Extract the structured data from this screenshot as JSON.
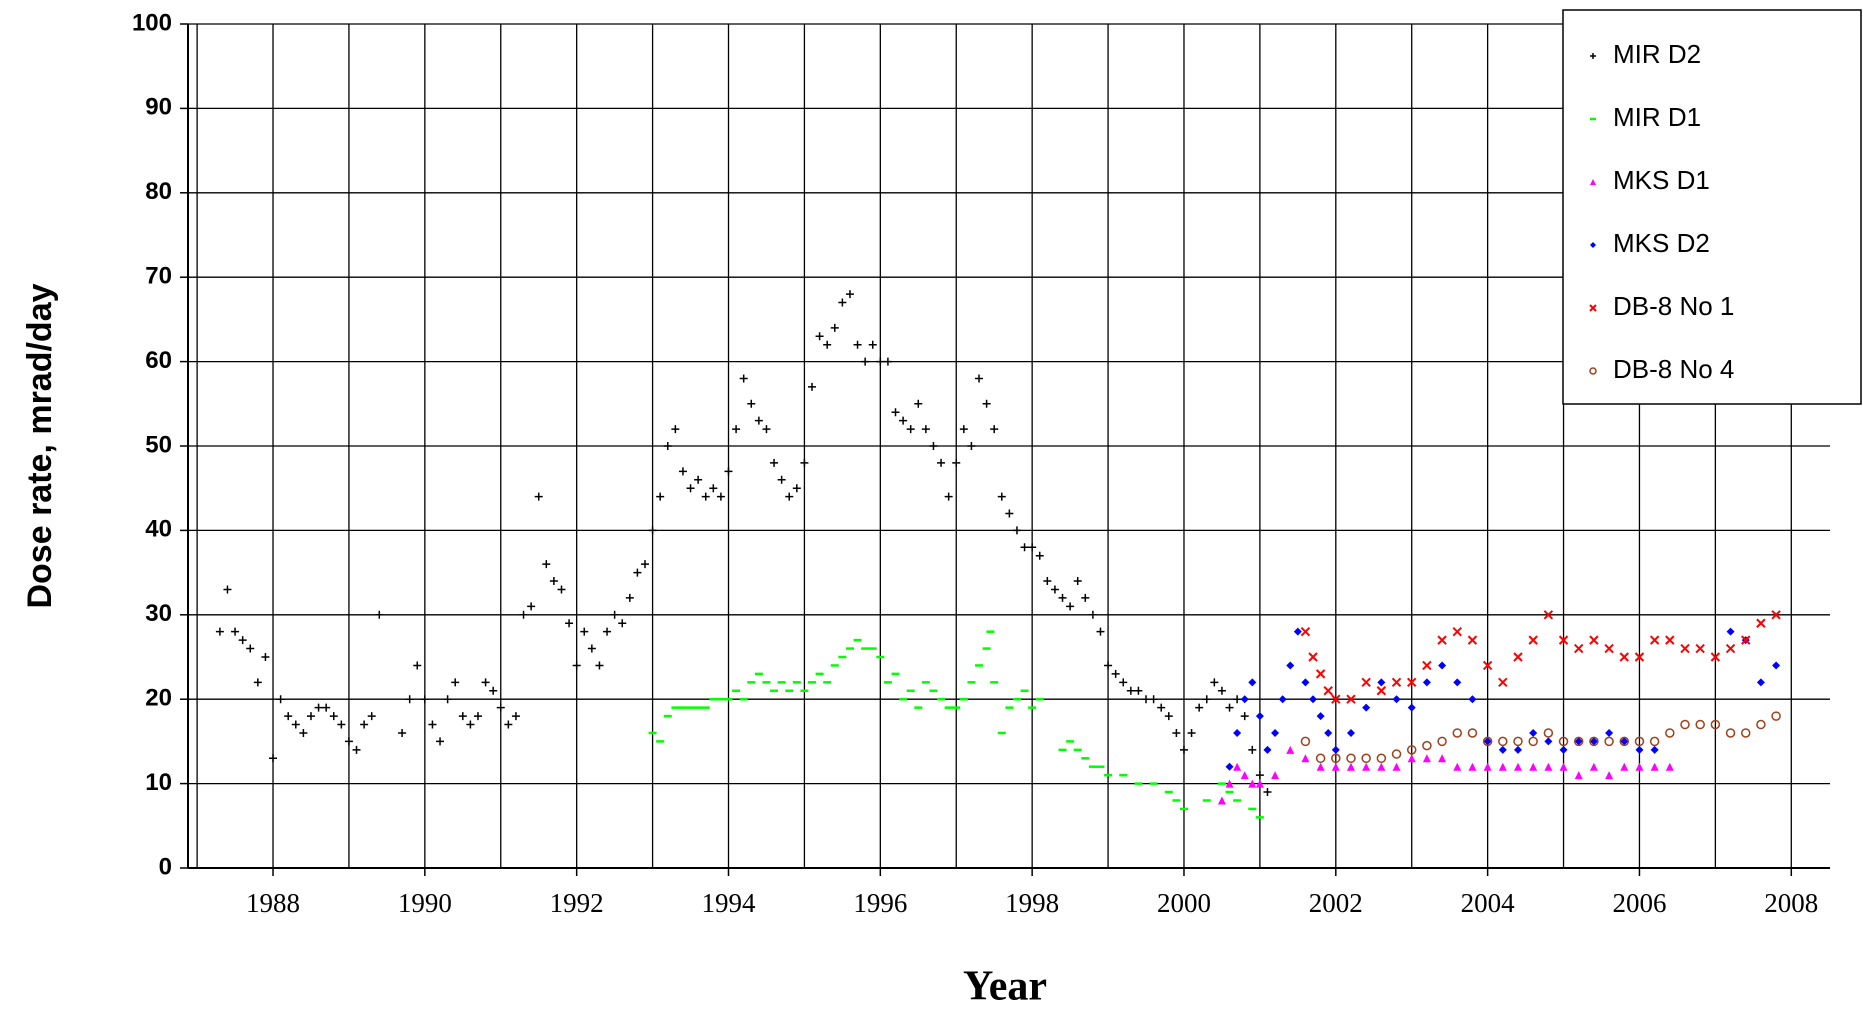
{
  "chart_data": {
    "type": "scatter",
    "x_label": "Year",
    "y_label": "Dose rate, mrad/day",
    "xlim": [
      1986.88,
      2008.51
    ],
    "ylim": [
      0,
      100
    ],
    "xticks": [
      1988,
      1990,
      1992,
      1994,
      1996,
      1998,
      2000,
      2002,
      2004,
      2006,
      2008
    ],
    "xgrid": [
      1987,
      1988,
      1989,
      1990,
      1991,
      1992,
      1993,
      1994,
      1995,
      1996,
      1997,
      1998,
      1999,
      2000,
      2001,
      2002,
      2003,
      2004,
      2005,
      2006,
      2007,
      2008
    ],
    "yticks": [
      0,
      10,
      20,
      30,
      40,
      50,
      60,
      70,
      80,
      90,
      100
    ],
    "grid": true,
    "legend": "upper right",
    "series": [
      {
        "name": "MIR D2",
        "color": "#000000",
        "marker": "plus",
        "x": [
          1987.3,
          1987.4,
          1987.5,
          1987.6,
          1987.7,
          1987.8,
          1987.9,
          1988.0,
          1988.1,
          1988.2,
          1988.3,
          1988.4,
          1988.5,
          1988.6,
          1988.7,
          1988.8,
          1988.9,
          1989.0,
          1989.1,
          1989.2,
          1989.3,
          1989.4,
          1989.7,
          1989.8,
          1989.9,
          1990.0,
          1990.1,
          1990.2,
          1990.3,
          1990.4,
          1990.5,
          1990.6,
          1990.7,
          1990.8,
          1990.9,
          1991.0,
          1991.1,
          1991.2,
          1991.3,
          1991.4,
          1991.5,
          1991.6,
          1991.7,
          1991.8,
          1991.9,
          1992.0,
          1992.1,
          1992.2,
          1992.3,
          1992.4,
          1992.5,
          1992.6,
          1992.7,
          1992.8,
          1992.9,
          1993.0,
          1993.1,
          1993.2,
          1993.3,
          1993.4,
          1993.5,
          1993.6,
          1993.7,
          1993.8,
          1993.9,
          1994.0,
          1994.1,
          1994.2,
          1994.3,
          1994.4,
          1994.5,
          1994.6,
          1994.7,
          1994.8,
          1994.9,
          1995.0,
          1995.1,
          1995.2,
          1995.3,
          1995.4,
          1995.5,
          1995.6,
          1995.7,
          1995.8,
          1995.9,
          1996.0,
          1996.1,
          1996.2,
          1996.3,
          1996.4,
          1996.5,
          1996.6,
          1996.7,
          1996.8,
          1996.9,
          1997.0,
          1997.1,
          1997.2,
          1997.3,
          1997.4,
          1997.5,
          1997.6,
          1997.7,
          1997.8,
          1997.9,
          1998.0,
          1998.1,
          1998.2,
          1998.3,
          1998.4,
          1998.5,
          1998.6,
          1998.7,
          1998.8,
          1998.9,
          1999.0,
          1999.1,
          1999.2,
          1999.3,
          1999.4,
          1999.5,
          1999.6,
          1999.7,
          1999.8,
          1999.9,
          2000.0,
          2000.1,
          2000.2,
          2000.3,
          2000.4,
          2000.5,
          2000.6,
          2000.7,
          2000.8,
          2000.9,
          2001.0,
          2001.1
        ],
        "values": [
          28,
          33,
          28,
          27,
          26,
          22,
          25,
          13,
          20,
          18,
          17,
          16,
          18,
          19,
          19,
          18,
          17,
          15,
          14,
          17,
          18,
          30,
          16,
          20,
          24,
          20,
          17,
          15,
          20,
          22,
          18,
          17,
          18,
          22,
          21,
          19,
          17,
          18,
          30,
          31,
          44,
          36,
          34,
          33,
          29,
          24,
          28,
          26,
          24,
          28,
          30,
          29,
          32,
          35,
          36,
          40,
          44,
          50,
          52,
          47,
          45,
          46,
          44,
          45,
          44,
          47,
          52,
          58,
          55,
          53,
          52,
          48,
          46,
          44,
          45,
          48,
          57,
          63,
          62,
          64,
          67,
          68,
          62,
          60,
          62,
          60,
          60,
          54,
          53,
          52,
          55,
          52,
          50,
          48,
          44,
          48,
          52,
          50,
          58,
          55,
          52,
          44,
          42,
          40,
          38,
          38,
          37,
          34,
          33,
          32,
          31,
          34,
          32,
          30,
          28,
          24,
          23,
          22,
          21,
          21,
          20,
          20,
          19,
          18,
          16,
          14,
          16,
          19,
          20,
          22,
          21,
          19,
          20,
          18,
          14,
          11,
          9
        ]
      },
      {
        "name": "MIR D1",
        "color": "#00ff00",
        "marker": "dash",
        "x": [
          1993.0,
          1993.1,
          1993.2,
          1993.3,
          1993.4,
          1993.5,
          1993.6,
          1993.7,
          1993.8,
          1993.9,
          1994.0,
          1994.1,
          1994.2,
          1994.3,
          1994.4,
          1994.5,
          1994.6,
          1994.7,
          1994.8,
          1994.9,
          1995.0,
          1995.1,
          1995.2,
          1995.3,
          1995.4,
          1995.5,
          1995.6,
          1995.7,
          1995.8,
          1995.9,
          1996.0,
          1996.1,
          1996.2,
          1996.3,
          1996.4,
          1996.5,
          1996.6,
          1996.7,
          1996.8,
          1996.9,
          1997.0,
          1997.1,
          1997.2,
          1997.3,
          1997.4,
          1997.45,
          1997.5,
          1997.6,
          1997.7,
          1997.8,
          1997.9,
          1998.0,
          1998.1,
          1998.4,
          1998.5,
          1998.6,
          1998.7,
          1998.8,
          1998.9,
          1999.0,
          1999.2,
          1999.4,
          1999.6,
          1999.8,
          1999.9,
          2000.0,
          2000.3,
          2000.5,
          2000.6,
          2000.7,
          2000.9,
          2001.0
        ],
        "values": [
          16,
          15,
          18,
          19,
          19,
          19,
          19,
          19,
          20,
          20,
          20,
          21,
          20,
          22,
          23,
          22,
          21,
          22,
          21,
          22,
          21,
          22,
          23,
          22,
          24,
          25,
          26,
          27,
          26,
          26,
          25,
          22,
          23,
          20,
          21,
          19,
          22,
          21,
          20,
          19,
          19,
          20,
          22,
          24,
          26,
          28,
          22,
          16,
          19,
          20,
          21,
          19,
          20,
          14,
          15,
          14,
          13,
          12,
          12,
          11,
          11,
          10,
          10,
          9,
          8,
          7,
          8,
          10,
          9,
          8,
          7,
          6
        ]
      },
      {
        "name": "MKS D1",
        "color": "#ff00ff",
        "marker": "triangle",
        "x": [
          2000.5,
          2000.6,
          2000.7,
          2000.8,
          2000.9,
          2001.0,
          2001.2,
          2001.4,
          2001.6,
          2001.8,
          2002.0,
          2002.2,
          2002.4,
          2002.6,
          2002.8,
          2003.0,
          2003.2,
          2003.4,
          2003.6,
          2003.8,
          2004.0,
          2004.2,
          2004.4,
          2004.6,
          2004.8,
          2005.0,
          2005.2,
          2005.4,
          2005.6,
          2005.8,
          2006.0,
          2006.2,
          2006.4
        ],
        "values": [
          8,
          10,
          12,
          11,
          10,
          10,
          11,
          14,
          13,
          12,
          12,
          12,
          12,
          12,
          12,
          13,
          13,
          13,
          12,
          12,
          12,
          12,
          12,
          12,
          12,
          12,
          11,
          12,
          11,
          12,
          12,
          12,
          12
        ]
      },
      {
        "name": "MKS D2",
        "color": "#0000ff",
        "marker": "diamond",
        "x": [
          2000.6,
          2000.7,
          2000.8,
          2000.9,
          2001.0,
          2001.1,
          2001.2,
          2001.3,
          2001.4,
          2001.5,
          2001.6,
          2001.7,
          2001.8,
          2001.9,
          2002.0,
          2002.2,
          2002.4,
          2002.6,
          2002.8,
          2003.0,
          2003.2,
          2003.4,
          2003.6,
          2003.8,
          2004.0,
          2004.2,
          2004.4,
          2004.6,
          2004.8,
          2005.0,
          2005.2,
          2005.4,
          2005.6,
          2005.8,
          2006.0,
          2006.2,
          2007.2,
          2007.4,
          2007.6,
          2007.8
        ],
        "values": [
          12,
          16,
          20,
          22,
          18,
          14,
          16,
          20,
          24,
          28,
          22,
          20,
          18,
          16,
          14,
          16,
          19,
          22,
          20,
          19,
          22,
          24,
          22,
          20,
          15,
          14,
          14,
          16,
          15,
          14,
          15,
          15,
          16,
          15,
          14,
          14,
          28,
          27,
          22,
          24
        ]
      },
      {
        "name": "DB-8 No 1",
        "color": "#ff0000",
        "marker": "x",
        "x": [
          2001.6,
          2001.7,
          2001.8,
          2001.9,
          2002.0,
          2002.2,
          2002.4,
          2002.6,
          2002.8,
          2003.0,
          2003.2,
          2003.4,
          2003.6,
          2003.8,
          2004.0,
          2004.2,
          2004.4,
          2004.6,
          2004.8,
          2005.0,
          2005.2,
          2005.4,
          2005.6,
          2005.8,
          2006.0,
          2006.2,
          2006.4,
          2006.6,
          2006.8,
          2007.0,
          2007.2,
          2007.4,
          2007.6,
          2007.8
        ],
        "values": [
          28,
          25,
          23,
          21,
          20,
          20,
          22,
          21,
          22,
          22,
          24,
          27,
          28,
          27,
          24,
          22,
          25,
          27,
          30,
          27,
          26,
          27,
          26,
          25,
          25,
          27,
          27,
          26,
          26,
          25,
          26,
          27,
          29,
          30
        ]
      },
      {
        "name": "DB-8 No 4",
        "color": "#a0401a",
        "marker": "circle",
        "x": [
          2001.6,
          2001.8,
          2002.0,
          2002.2,
          2002.4,
          2002.6,
          2002.8,
          2003.0,
          2003.2,
          2003.4,
          2003.6,
          2003.8,
          2004.0,
          2004.2,
          2004.4,
          2004.6,
          2004.8,
          2005.0,
          2005.2,
          2005.4,
          2005.6,
          2005.8,
          2006.0,
          2006.2,
          2006.4,
          2006.6,
          2006.8,
          2007.0,
          2007.2,
          2007.4,
          2007.6,
          2007.8
        ],
        "values": [
          15,
          13,
          13,
          13,
          13,
          13,
          13.5,
          14,
          14.5,
          15,
          16,
          16,
          15,
          15,
          15,
          15,
          16,
          15,
          15,
          15,
          15,
          15,
          15,
          15,
          16,
          17,
          17,
          17,
          16,
          16,
          17,
          18
        ]
      }
    ]
  }
}
